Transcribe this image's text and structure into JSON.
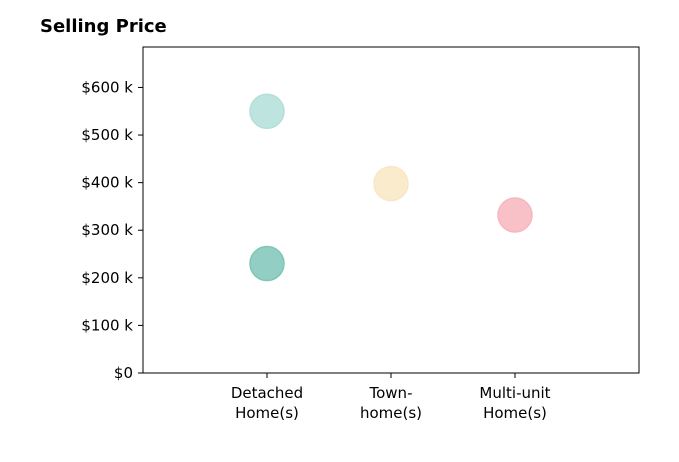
{
  "chart_data": {
    "type": "scatter",
    "title": "Selling Price",
    "xlabel": "",
    "ylabel": "",
    "categories": [
      {
        "lines": [
          "Detached",
          "Home(s)"
        ]
      },
      {
        "lines": [
          "Town-",
          "home(s)"
        ]
      },
      {
        "lines": [
          "Multi-unit",
          "Home(s)"
        ]
      }
    ],
    "xlim": [
      0,
      4
    ],
    "ylim": [
      0,
      685
    ],
    "yticks": [
      {
        "value": 0,
        "label": "$0"
      },
      {
        "value": 100,
        "label": "$100 k"
      },
      {
        "value": 200,
        "label": "$200 k"
      },
      {
        "value": 300,
        "label": "$300 k"
      },
      {
        "value": 400,
        "label": "$400 k"
      },
      {
        "value": 500,
        "label": "$500 k"
      },
      {
        "value": 600,
        "label": "$600 k"
      }
    ],
    "points": [
      {
        "x": 1,
        "y": 550,
        "color": "#b2dfd9"
      },
      {
        "x": 1,
        "y": 230,
        "color": "#7fc6b8"
      },
      {
        "x": 2,
        "y": 398,
        "color": "#f9e7c4"
      },
      {
        "x": 3,
        "y": 332,
        "color": "#f7b6bd"
      }
    ],
    "grid": false,
    "legend": "none"
  }
}
